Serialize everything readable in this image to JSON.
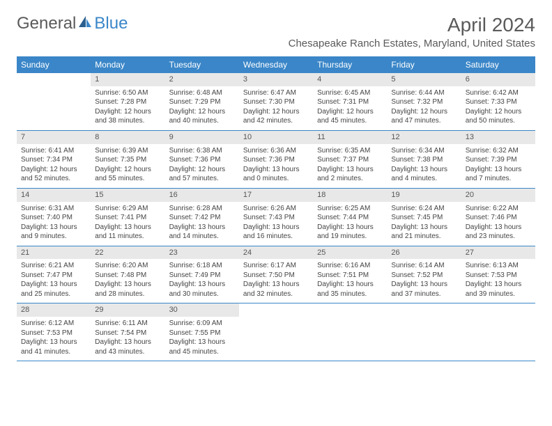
{
  "brand": {
    "part1": "General",
    "part2": "Blue"
  },
  "title": "April 2024",
  "location": "Chesapeake Ranch Estates, Maryland, United States",
  "colors": {
    "accent": "#3a86c8",
    "daynum_bg": "#e8e8e8",
    "text": "#3a3a3a",
    "header_text": "#ffffff"
  },
  "day_names": [
    "Sunday",
    "Monday",
    "Tuesday",
    "Wednesday",
    "Thursday",
    "Friday",
    "Saturday"
  ],
  "weeks": [
    [
      {
        "empty": true
      },
      {
        "n": "1",
        "sr": "Sunrise: 6:50 AM",
        "ss": "Sunset: 7:28 PM",
        "d1": "Daylight: 12 hours",
        "d2": "and 38 minutes."
      },
      {
        "n": "2",
        "sr": "Sunrise: 6:48 AM",
        "ss": "Sunset: 7:29 PM",
        "d1": "Daylight: 12 hours",
        "d2": "and 40 minutes."
      },
      {
        "n": "3",
        "sr": "Sunrise: 6:47 AM",
        "ss": "Sunset: 7:30 PM",
        "d1": "Daylight: 12 hours",
        "d2": "and 42 minutes."
      },
      {
        "n": "4",
        "sr": "Sunrise: 6:45 AM",
        "ss": "Sunset: 7:31 PM",
        "d1": "Daylight: 12 hours",
        "d2": "and 45 minutes."
      },
      {
        "n": "5",
        "sr": "Sunrise: 6:44 AM",
        "ss": "Sunset: 7:32 PM",
        "d1": "Daylight: 12 hours",
        "d2": "and 47 minutes."
      },
      {
        "n": "6",
        "sr": "Sunrise: 6:42 AM",
        "ss": "Sunset: 7:33 PM",
        "d1": "Daylight: 12 hours",
        "d2": "and 50 minutes."
      }
    ],
    [
      {
        "n": "7",
        "sr": "Sunrise: 6:41 AM",
        "ss": "Sunset: 7:34 PM",
        "d1": "Daylight: 12 hours",
        "d2": "and 52 minutes."
      },
      {
        "n": "8",
        "sr": "Sunrise: 6:39 AM",
        "ss": "Sunset: 7:35 PM",
        "d1": "Daylight: 12 hours",
        "d2": "and 55 minutes."
      },
      {
        "n": "9",
        "sr": "Sunrise: 6:38 AM",
        "ss": "Sunset: 7:36 PM",
        "d1": "Daylight: 12 hours",
        "d2": "and 57 minutes."
      },
      {
        "n": "10",
        "sr": "Sunrise: 6:36 AM",
        "ss": "Sunset: 7:36 PM",
        "d1": "Daylight: 13 hours",
        "d2": "and 0 minutes."
      },
      {
        "n": "11",
        "sr": "Sunrise: 6:35 AM",
        "ss": "Sunset: 7:37 PM",
        "d1": "Daylight: 13 hours",
        "d2": "and 2 minutes."
      },
      {
        "n": "12",
        "sr": "Sunrise: 6:34 AM",
        "ss": "Sunset: 7:38 PM",
        "d1": "Daylight: 13 hours",
        "d2": "and 4 minutes."
      },
      {
        "n": "13",
        "sr": "Sunrise: 6:32 AM",
        "ss": "Sunset: 7:39 PM",
        "d1": "Daylight: 13 hours",
        "d2": "and 7 minutes."
      }
    ],
    [
      {
        "n": "14",
        "sr": "Sunrise: 6:31 AM",
        "ss": "Sunset: 7:40 PM",
        "d1": "Daylight: 13 hours",
        "d2": "and 9 minutes."
      },
      {
        "n": "15",
        "sr": "Sunrise: 6:29 AM",
        "ss": "Sunset: 7:41 PM",
        "d1": "Daylight: 13 hours",
        "d2": "and 11 minutes."
      },
      {
        "n": "16",
        "sr": "Sunrise: 6:28 AM",
        "ss": "Sunset: 7:42 PM",
        "d1": "Daylight: 13 hours",
        "d2": "and 14 minutes."
      },
      {
        "n": "17",
        "sr": "Sunrise: 6:26 AM",
        "ss": "Sunset: 7:43 PM",
        "d1": "Daylight: 13 hours",
        "d2": "and 16 minutes."
      },
      {
        "n": "18",
        "sr": "Sunrise: 6:25 AM",
        "ss": "Sunset: 7:44 PM",
        "d1": "Daylight: 13 hours",
        "d2": "and 19 minutes."
      },
      {
        "n": "19",
        "sr": "Sunrise: 6:24 AM",
        "ss": "Sunset: 7:45 PM",
        "d1": "Daylight: 13 hours",
        "d2": "and 21 minutes."
      },
      {
        "n": "20",
        "sr": "Sunrise: 6:22 AM",
        "ss": "Sunset: 7:46 PM",
        "d1": "Daylight: 13 hours",
        "d2": "and 23 minutes."
      }
    ],
    [
      {
        "n": "21",
        "sr": "Sunrise: 6:21 AM",
        "ss": "Sunset: 7:47 PM",
        "d1": "Daylight: 13 hours",
        "d2": "and 25 minutes."
      },
      {
        "n": "22",
        "sr": "Sunrise: 6:20 AM",
        "ss": "Sunset: 7:48 PM",
        "d1": "Daylight: 13 hours",
        "d2": "and 28 minutes."
      },
      {
        "n": "23",
        "sr": "Sunrise: 6:18 AM",
        "ss": "Sunset: 7:49 PM",
        "d1": "Daylight: 13 hours",
        "d2": "and 30 minutes."
      },
      {
        "n": "24",
        "sr": "Sunrise: 6:17 AM",
        "ss": "Sunset: 7:50 PM",
        "d1": "Daylight: 13 hours",
        "d2": "and 32 minutes."
      },
      {
        "n": "25",
        "sr": "Sunrise: 6:16 AM",
        "ss": "Sunset: 7:51 PM",
        "d1": "Daylight: 13 hours",
        "d2": "and 35 minutes."
      },
      {
        "n": "26",
        "sr": "Sunrise: 6:14 AM",
        "ss": "Sunset: 7:52 PM",
        "d1": "Daylight: 13 hours",
        "d2": "and 37 minutes."
      },
      {
        "n": "27",
        "sr": "Sunrise: 6:13 AM",
        "ss": "Sunset: 7:53 PM",
        "d1": "Daylight: 13 hours",
        "d2": "and 39 minutes."
      }
    ],
    [
      {
        "n": "28",
        "sr": "Sunrise: 6:12 AM",
        "ss": "Sunset: 7:53 PM",
        "d1": "Daylight: 13 hours",
        "d2": "and 41 minutes."
      },
      {
        "n": "29",
        "sr": "Sunrise: 6:11 AM",
        "ss": "Sunset: 7:54 PM",
        "d1": "Daylight: 13 hours",
        "d2": "and 43 minutes."
      },
      {
        "n": "30",
        "sr": "Sunrise: 6:09 AM",
        "ss": "Sunset: 7:55 PM",
        "d1": "Daylight: 13 hours",
        "d2": "and 45 minutes."
      },
      {
        "empty": true
      },
      {
        "empty": true
      },
      {
        "empty": true
      },
      {
        "empty": true
      }
    ]
  ]
}
